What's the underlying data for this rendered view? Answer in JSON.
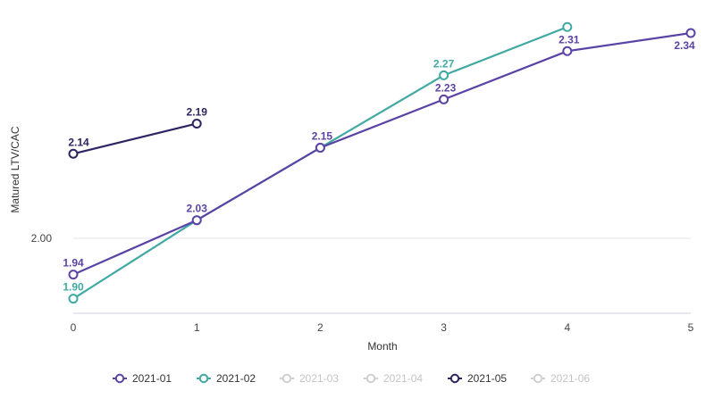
{
  "chart_data": {
    "type": "line",
    "xlabel": "Month",
    "ylabel": "Matured LTV/CAC",
    "x": [
      0,
      1,
      2,
      3,
      4,
      5
    ],
    "y_ticks": [
      2.0
    ],
    "y_tick_labels": [
      "2.00"
    ],
    "ylim": [
      1.85,
      2.38
    ],
    "xlim": [
      0,
      5
    ],
    "grid": "horizontal",
    "legend_position": "bottom",
    "series": [
      {
        "name": "2021-01",
        "color": "#5b43a6",
        "enabled": true,
        "points": [
          {
            "x": 0,
            "y": 1.94,
            "label": "1.94"
          },
          {
            "x": 1,
            "y": 2.03,
            "label": "2.03"
          },
          {
            "x": 2,
            "y": 2.15,
            "label": "2.15"
          },
          {
            "x": 3,
            "y": 2.23,
            "label": "2.23"
          },
          {
            "x": 4,
            "y": 2.31,
            "label": "2.31"
          },
          {
            "x": 5,
            "y": 2.34,
            "label": "2.34"
          }
        ]
      },
      {
        "name": "2021-02",
        "color": "#3fa9a2",
        "enabled": true,
        "points": [
          {
            "x": 0,
            "y": 1.9,
            "label": "1.90"
          },
          {
            "x": 1,
            "y": 2.03,
            "label": ""
          },
          {
            "x": 2,
            "y": 2.15,
            "label": ""
          },
          {
            "x": 3,
            "y": 2.27,
            "label": "2.27"
          },
          {
            "x": 4,
            "y": 2.35,
            "label": ""
          }
        ]
      },
      {
        "name": "2021-03",
        "color": "#c8c8c8",
        "enabled": false,
        "points": []
      },
      {
        "name": "2021-04",
        "color": "#c8c8c8",
        "enabled": false,
        "points": []
      },
      {
        "name": "2021-05",
        "color": "#2d2461",
        "enabled": true,
        "points": [
          {
            "x": 0,
            "y": 2.14,
            "label": "2.14"
          },
          {
            "x": 1,
            "y": 2.19,
            "label": "2.19"
          }
        ]
      },
      {
        "name": "2021-06",
        "color": "#c8c8c8",
        "enabled": false,
        "points": []
      }
    ]
  }
}
